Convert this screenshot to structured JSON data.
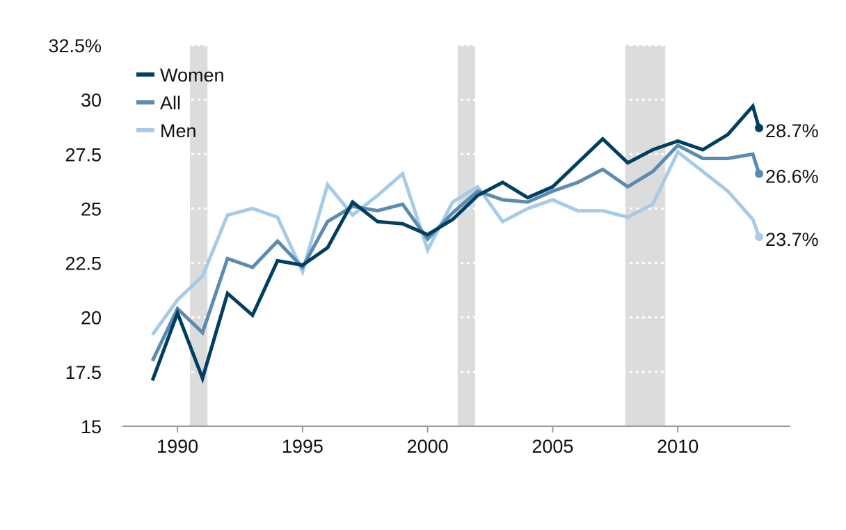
{
  "chart_data": {
    "type": "line",
    "title": "",
    "xlabel": "",
    "ylabel": "",
    "xlim": [
      1987.8,
      2014.5
    ],
    "ylim": [
      15,
      32.5
    ],
    "x_ticks": [
      1990,
      1995,
      2000,
      2005,
      2010
    ],
    "y_ticks": [
      {
        "value": 15,
        "label": "15"
      },
      {
        "value": 17.5,
        "label": "17.5"
      },
      {
        "value": 20,
        "label": "20"
      },
      {
        "value": 22.5,
        "label": "22.5"
      },
      {
        "value": 25,
        "label": "25"
      },
      {
        "value": 27.5,
        "label": "27.5"
      },
      {
        "value": 30,
        "label": "30"
      },
      {
        "value": 32.5,
        "label": "32.5%"
      }
    ],
    "grid": "horizontal dotted white lines",
    "legend_position": "top-left",
    "recession_bands": [
      [
        1990.5,
        1991.2
      ],
      [
        2001.2,
        2001.9
      ],
      [
        2007.9,
        2009.5
      ]
    ],
    "x": [
      1989,
      1990,
      1991,
      1992,
      1993,
      1994,
      1995,
      1996,
      1997,
      1998,
      1999,
      2000,
      2001,
      2002,
      2003,
      2004,
      2005,
      2006,
      2007,
      2008,
      2009,
      2010,
      2011,
      2012,
      2013,
      2013.25
    ],
    "series": [
      {
        "name": "Women",
        "color": "#003f5f",
        "values": [
          17.1,
          20.2,
          17.2,
          21.1,
          20.1,
          22.6,
          22.4,
          23.2,
          25.3,
          24.4,
          24.3,
          23.8,
          24.5,
          25.6,
          26.2,
          25.5,
          26.0,
          27.1,
          28.2,
          27.1,
          27.7,
          28.1,
          27.7,
          28.4,
          29.7,
          28.7
        ],
        "end_label": "28.7%"
      },
      {
        "name": "All",
        "color": "#5b8bb0",
        "values": [
          18.0,
          20.4,
          19.3,
          22.7,
          22.3,
          23.5,
          22.3,
          24.4,
          25.1,
          24.9,
          25.2,
          23.6,
          24.8,
          25.8,
          25.4,
          25.3,
          25.8,
          26.2,
          26.8,
          26.0,
          26.7,
          27.9,
          27.3,
          27.3,
          27.5,
          26.6
        ],
        "end_label": "26.6%"
      },
      {
        "name": "Men",
        "color": "#a6cbe8",
        "values": [
          19.2,
          20.8,
          21.9,
          24.7,
          25.0,
          24.6,
          22.1,
          26.1,
          24.7,
          25.6,
          26.6,
          23.1,
          25.3,
          26.0,
          24.4,
          25.0,
          25.4,
          24.9,
          24.9,
          24.6,
          25.2,
          27.6,
          26.7,
          25.8,
          24.5,
          23.7
        ],
        "end_label": "23.7%"
      }
    ]
  }
}
